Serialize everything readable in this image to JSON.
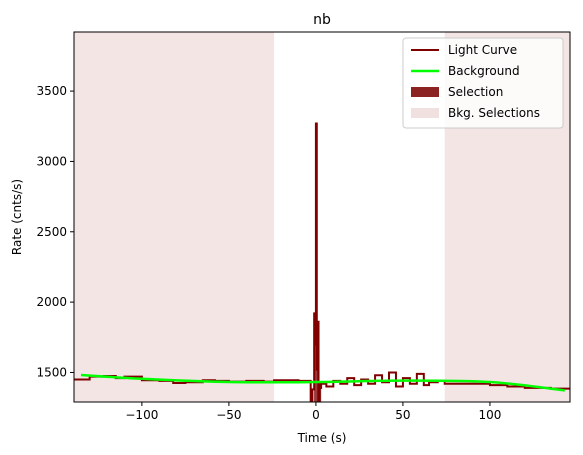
{
  "chart_data": {
    "type": "line",
    "title": "nb",
    "xlabel": "Time (s)",
    "ylabel": "Rate (cnts/s)",
    "xlim": [
      -139,
      146
    ],
    "ylim": [
      1290,
      3920
    ],
    "xticks": [
      -100,
      -50,
      0,
      50,
      100
    ],
    "yticks": [
      1500,
      2000,
      2500,
      3000,
      3500
    ],
    "grid": false,
    "legend_position": "top-right",
    "legend": [
      {
        "label": "Light Curve",
        "kind": "line",
        "color": "#800000"
      },
      {
        "label": "Background",
        "kind": "line",
        "color": "#00ff00"
      },
      {
        "label": "Selection",
        "kind": "patch",
        "color": "#8b2323"
      },
      {
        "label": "Bkg. Selections",
        "kind": "patch",
        "color": "#f0e0df"
      }
    ],
    "selection": {
      "x": [
        -1.5,
        3.0
      ]
    },
    "bkg_selections": [
      {
        "x": [
          -139,
          -24
        ]
      },
      {
        "x": [
          74,
          146
        ]
      }
    ],
    "background": {
      "x": [
        -135,
        -100,
        -50,
        0,
        50,
        100,
        143
      ],
      "y": [
        1482,
        1455,
        1432,
        1432,
        1442,
        1432,
        1372
      ]
    },
    "light_curve": {
      "x": [
        -139,
        -130,
        -122,
        -115,
        -110,
        -100,
        -90,
        -82,
        -75,
        -65,
        -58,
        -50,
        -40,
        -30,
        -24,
        -10,
        -5,
        -3,
        -2,
        -1,
        -0.5,
        0,
        0.5,
        1,
        1.5,
        2,
        2.5,
        3,
        4,
        6,
        10,
        14,
        18,
        22,
        26,
        30,
        34,
        38,
        42,
        46,
        50,
        54,
        58,
        62,
        65,
        70,
        74,
        80,
        100,
        110,
        120,
        135,
        146
      ],
      "y": [
        1450,
        1470,
        1475,
        1460,
        1470,
        1445,
        1440,
        1425,
        1430,
        1445,
        1440,
        1435,
        1440,
        1435,
        1445,
        1440,
        1440,
        1300,
        1380,
        1920,
        1700,
        3270,
        1520,
        1860,
        1300,
        1420,
        1390,
        1430,
        1420,
        1400,
        1440,
        1420,
        1460,
        1410,
        1450,
        1420,
        1480,
        1430,
        1500,
        1400,
        1460,
        1420,
        1490,
        1410,
        1430,
        1440,
        1420,
        1420,
        1410,
        1400,
        1390,
        1385,
        1385
      ]
    }
  }
}
